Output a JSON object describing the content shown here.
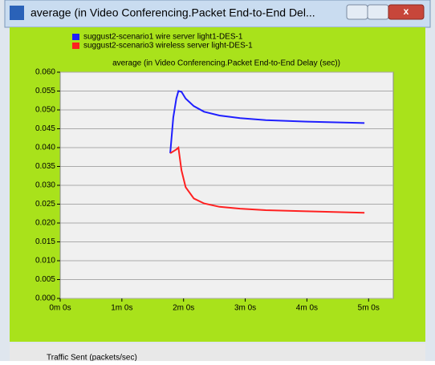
{
  "window": {
    "title": "average (in Video Conferencing.Packet End-to-End Del...",
    "footer": "Traffic Sent (packets/sec)"
  },
  "chart_data": {
    "type": "line",
    "title": "average (in Video Conferencing.Packet End-to-End Delay (sec))",
    "x": [
      107,
      110,
      113,
      115,
      118,
      122,
      130,
      140,
      155,
      175,
      200,
      240,
      296
    ],
    "series": [
      {
        "name": "suggust2-scenario1 wire server light1-DES-1",
        "color": "#1f1fff",
        "values": [
          0.0385,
          0.048,
          0.053,
          0.055,
          0.0548,
          0.053,
          0.051,
          0.0495,
          0.0485,
          0.0478,
          0.0473,
          0.0469,
          0.0465
        ]
      },
      {
        "name": "suggust2-scenario3 wireless server light-DES-1",
        "color": "#ff2020",
        "values": [
          0.0385,
          0.039,
          0.0395,
          0.04,
          0.034,
          0.0295,
          0.0265,
          0.0252,
          0.0243,
          0.0238,
          0.0234,
          0.0231,
          0.0227
        ]
      }
    ],
    "xlim": [
      0,
      324
    ],
    "xticks": [
      {
        "value": 0,
        "label": "0m 0s"
      },
      {
        "value": 60,
        "label": "1m 0s"
      },
      {
        "value": 120,
        "label": "2m 0s"
      },
      {
        "value": 180,
        "label": "3m 0s"
      },
      {
        "value": 240,
        "label": "4m 0s"
      },
      {
        "value": 300,
        "label": "5m 0s"
      }
    ],
    "ylim": [
      0,
      0.06
    ],
    "yticks": [
      {
        "value": 0,
        "label": "0.000"
      },
      {
        "value": 0.005,
        "label": "0.005"
      },
      {
        "value": 0.01,
        "label": "0.010"
      },
      {
        "value": 0.015,
        "label": "0.015"
      },
      {
        "value": 0.02,
        "label": "0.020"
      },
      {
        "value": 0.025,
        "label": "0.025"
      },
      {
        "value": 0.03,
        "label": "0.030"
      },
      {
        "value": 0.035,
        "label": "0.035"
      },
      {
        "value": 0.04,
        "label": "0.040"
      },
      {
        "value": 0.045,
        "label": "0.045"
      },
      {
        "value": 0.05,
        "label": "0.050"
      },
      {
        "value": 0.055,
        "label": "0.055"
      },
      {
        "value": 0.06,
        "label": "0.060"
      }
    ],
    "grid": true
  }
}
